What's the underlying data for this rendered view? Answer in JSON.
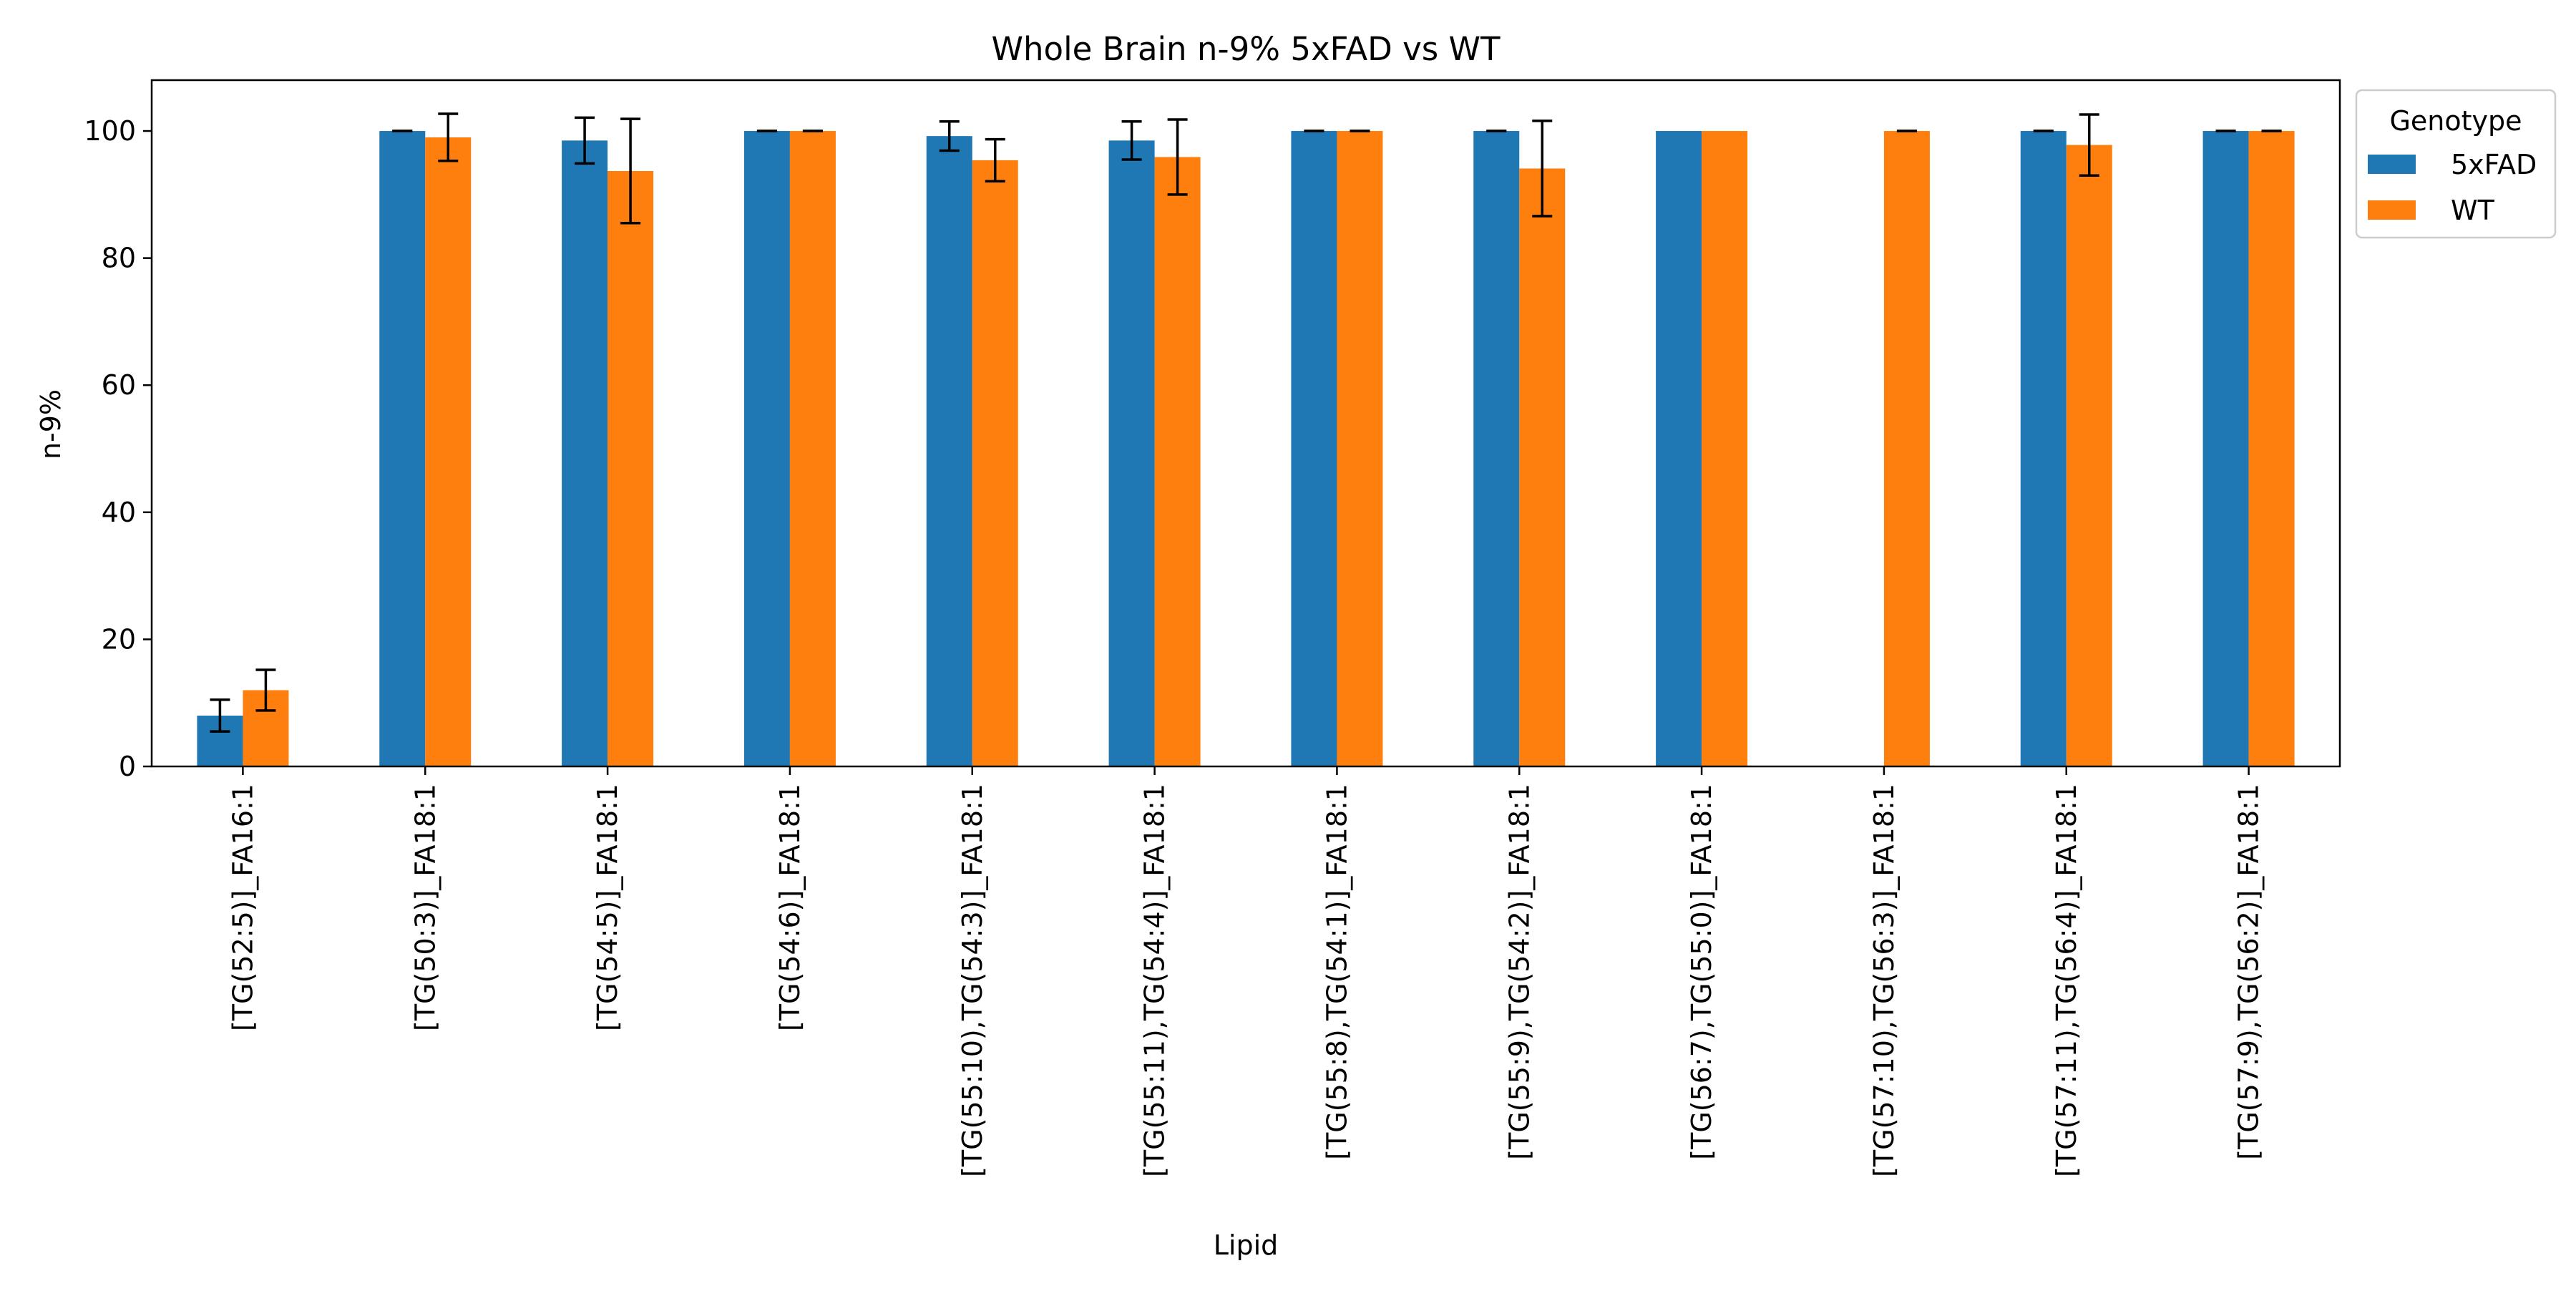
{
  "chart_data": {
    "type": "bar",
    "title": "Whole Brain n-9% 5xFAD vs WT",
    "xlabel": "Lipid",
    "ylabel": "n-9%",
    "ylim": [
      0,
      108
    ],
    "yticks": [
      0,
      20,
      40,
      60,
      80,
      100
    ],
    "grid": false,
    "categories": [
      "[TG(52:5)]_FA16:1",
      "[TG(50:3)]_FA18:1",
      "[TG(54:5)]_FA18:1",
      "[TG(54:6)]_FA18:1",
      "[TG(55:10),TG(54:3)]_FA18:1",
      "[TG(55:11),TG(54:4)]_FA18:1",
      "[TG(55:8),TG(54:1)]_FA18:1",
      "[TG(55:9),TG(54:2)]_FA18:1",
      "[TG(56:7),TG(55:0)]_FA18:1",
      "[TG(57:10),TG(56:3)]_FA18:1",
      "[TG(57:11),TG(56:4)]_FA18:1",
      "[TG(57:9),TG(56:2)]_FA18:1"
    ],
    "legend": {
      "title": "Genotype",
      "placement": "outside-top-right"
    },
    "series": [
      {
        "name": "5xFAD",
        "color": "#1f77b4",
        "values": [
          8.0,
          100.0,
          98.5,
          100.0,
          99.2,
          98.5,
          100.0,
          100.0,
          100.0,
          null,
          100.0,
          100.0
        ],
        "errors": [
          2.5,
          0,
          3.6,
          0,
          2.3,
          3.0,
          0,
          0,
          null,
          null,
          0,
          0
        ]
      },
      {
        "name": "WT",
        "color": "#ff7f0e",
        "values": [
          12.0,
          99.0,
          93.7,
          100.0,
          95.4,
          95.9,
          100.0,
          94.1,
          100.0,
          100.0,
          97.8,
          100.0
        ],
        "errors": [
          3.2,
          3.7,
          8.2,
          0,
          3.3,
          5.9,
          0,
          7.5,
          null,
          0,
          4.8,
          0
        ]
      }
    ]
  }
}
